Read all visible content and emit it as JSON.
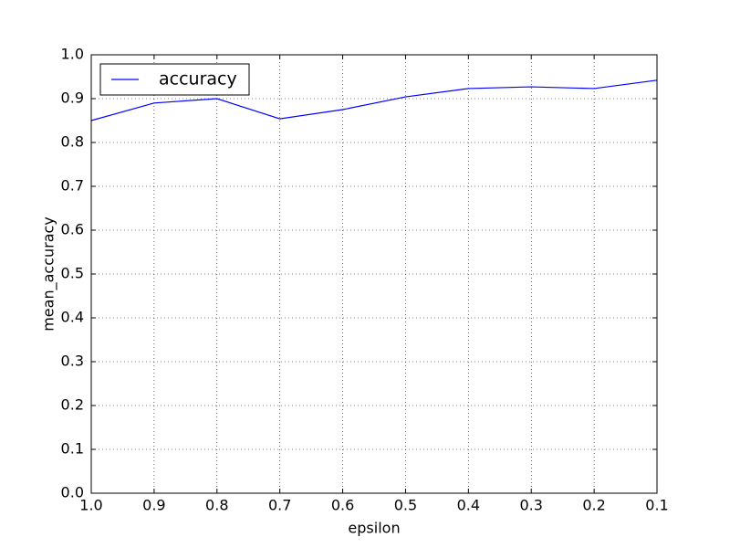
{
  "chart_data": {
    "type": "line",
    "xlabel": "epsilon",
    "ylabel": "mean_accuracy",
    "x": [
      1.0,
      0.9,
      0.8,
      0.7,
      0.6,
      0.5,
      0.4,
      0.3,
      0.2,
      0.1
    ],
    "series": [
      {
        "name": "accuracy",
        "color": "#0000ff",
        "values": [
          0.85,
          0.89,
          0.9,
          0.854,
          0.875,
          0.904,
          0.923,
          0.927,
          0.923,
          0.942
        ]
      }
    ],
    "xlim": [
      1.0,
      0.1
    ],
    "xticks": [
      {
        "value": 1,
        "label": "1.0"
      },
      0.9,
      0.8,
      0.7,
      0.6,
      0.5,
      0.4,
      0.3,
      0.2,
      0.1
    ],
    "ylim": [
      0,
      1
    ],
    "yticks": [
      {
        "value": 0,
        "label": "0.0"
      },
      0.1,
      0.2,
      0.3,
      0.4,
      0.5,
      0.6,
      0.7,
      0.8,
      0.9,
      {
        "value": 1,
        "label": "1.0"
      }
    ],
    "grid": true,
    "legend": "upper left"
  }
}
